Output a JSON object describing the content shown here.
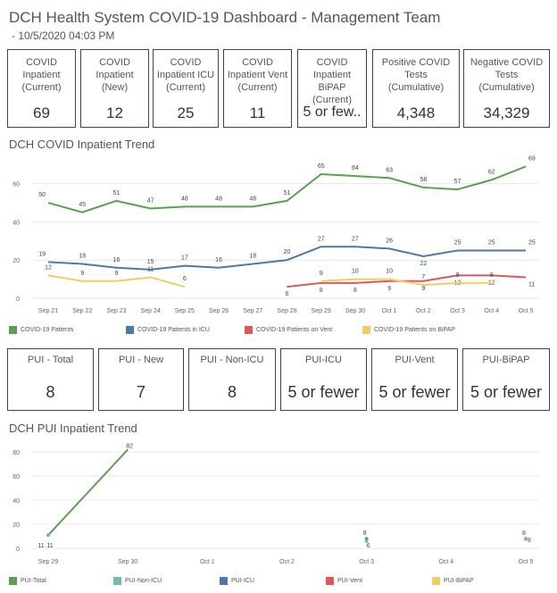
{
  "header": {
    "title": "DCH Health System COVID-19 Dashboard - Management Team",
    "subtitle": "- 10/5/2020 04:03 PM"
  },
  "kpis": [
    {
      "label": "COVID Inpatient (Current)",
      "value": "69"
    },
    {
      "label": "COVID Inpatient (New)",
      "value": "12"
    },
    {
      "label": "COVID Inpatient ICU (Current)",
      "value": "25"
    },
    {
      "label": "COVID Inpatient Vent (Current)",
      "value": "11"
    },
    {
      "label": "COVID Inpatient BiPAP (Current)",
      "value": "5 or few.."
    },
    {
      "label": "Positive COVID Tests (Cumulative)",
      "value": "4,348"
    },
    {
      "label": "Negative COVID Tests (Cumulative)",
      "value": "34,329"
    }
  ],
  "pui_kpis": [
    {
      "label": "PUI - Total",
      "value": "8"
    },
    {
      "label": "PUI - New",
      "value": "7"
    },
    {
      "label": "PUI - Non-ICU",
      "value": "8"
    },
    {
      "label": "PUI-ICU",
      "value": "5 or fewer"
    },
    {
      "label": "PUI-Vent",
      "value": "5 or fewer"
    },
    {
      "label": "PUI-BiPAP",
      "value": "5 or fewer"
    }
  ],
  "chart_data": [
    {
      "type": "line",
      "title": "DCH COVID Inpatient Trend",
      "x": [
        "Sep 21",
        "Sep 22",
        "Sep 23",
        "Sep 24",
        "Sep 25",
        "Sep 26",
        "Sep 27",
        "Sep 28",
        "Sep 29",
        "Sep 30",
        "Oct 1",
        "Oct 2",
        "Oct 3",
        "Oct 4",
        "Oct 5"
      ],
      "yticks": [
        0,
        20,
        40,
        60
      ],
      "ylim": [
        0,
        72
      ],
      "grid": true,
      "legend": "bottom",
      "series": [
        {
          "name": "COVID-19 Patients",
          "color": "#59a14f",
          "values": [
            50,
            45,
            51,
            47,
            48,
            48,
            48,
            51,
            65,
            64,
            63,
            58,
            57,
            62,
            69
          ]
        },
        {
          "name": "COVID-19 Patients in ICU",
          "color": "#4e79a7",
          "values": [
            19,
            18,
            16,
            15,
            17,
            16,
            18,
            20,
            27,
            27,
            26,
            22,
            25,
            25,
            25
          ]
        },
        {
          "name": "COVID-19 Patients on Vent",
          "color": "#e15759",
          "values": [
            null,
            null,
            null,
            null,
            null,
            null,
            null,
            6,
            8,
            8,
            9,
            9,
            12,
            12,
            11
          ]
        },
        {
          "name": "COVID-19 Patients on BiPAP",
          "color": "#f1ce63",
          "values": [
            12,
            9,
            9,
            11,
            6,
            null,
            null,
            null,
            9,
            10,
            10,
            7,
            8,
            8,
            null
          ]
        }
      ]
    },
    {
      "type": "line",
      "title": "DCH PUI Inpatient Trend",
      "x": [
        "Sep 29",
        "Sep 30",
        "Oct 1",
        "Oct 2",
        "Oct 3",
        "Oct 4",
        "Oct 5"
      ],
      "yticks": [
        0,
        20,
        40,
        60,
        80
      ],
      "ylim": [
        0,
        86
      ],
      "grid": true,
      "legend": "bottom",
      "series": [
        {
          "name": "PUI-Total",
          "color": "#59a14f",
          "values": [
            11,
            82,
            null,
            null,
            8,
            null,
            8
          ]
        },
        {
          "name": "PUI-Non-ICU",
          "color": "#76b7b2",
          "values": [
            11,
            null,
            null,
            null,
            6,
            null,
            8
          ]
        },
        {
          "name": "PUI-ICU",
          "color": "#4e79a7",
          "values": [
            null,
            null,
            null,
            null,
            null,
            null,
            null
          ]
        },
        {
          "name": "PUI-Vent",
          "color": "#e15759",
          "values": [
            null,
            null,
            null,
            null,
            null,
            null,
            null
          ]
        },
        {
          "name": "PUI-BiPAP",
          "color": "#f1ce63",
          "values": [
            null,
            null,
            null,
            null,
            null,
            null,
            null
          ]
        }
      ],
      "point_labels": [
        {
          "x": "Sep 29",
          "text": "11"
        },
        {
          "x": "Sep 29",
          "text": "11"
        },
        {
          "x": "Sep 30",
          "text": "82"
        },
        {
          "x": "Oct 3",
          "text": "8"
        },
        {
          "x": "Oct 3",
          "text": "6"
        },
        {
          "x": "Oct 5",
          "text": "8"
        },
        {
          "x": "Oct 5",
          "text": "8"
        }
      ]
    }
  ]
}
